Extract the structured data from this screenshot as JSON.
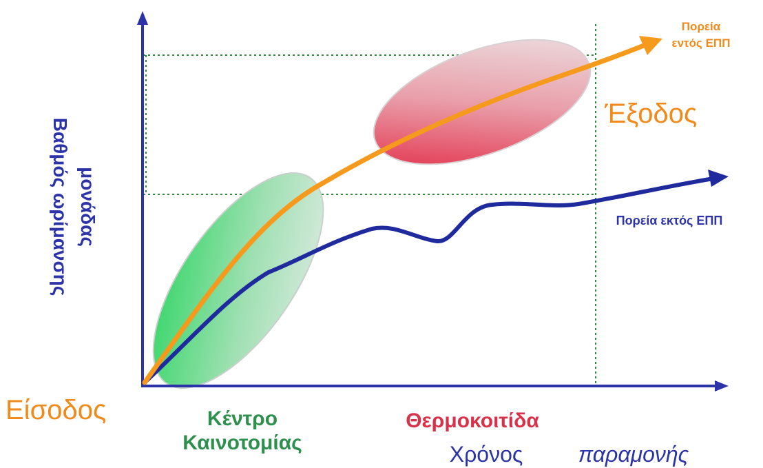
{
  "labels": {
    "y_axis_line1": "Βαθμός ωρίμανσης",
    "y_axis_line2": "μονάδας",
    "entry": "Είσοδος",
    "exit": "Έξοδος",
    "innovation_center_line1": "Κέντρο",
    "innovation_center_line2": "Καινοτομίας",
    "incubator": "Θερμοκοιτίδα",
    "time_line1": "Χρόνος",
    "time_line2": "παραμονής",
    "path_inside_line1": "Πορεία",
    "path_inside_line2": "εντός ΕΠΠ",
    "path_outside": "Πορεία εκτός ΕΠΠ"
  },
  "colors": {
    "axis": "#2b33a6",
    "orange_curve": "#f59a1c",
    "blue_curve": "#1f2a9c",
    "orange_text": "#f08a1a",
    "green_text": "#2e8f4e",
    "red_text": "#d8324a",
    "blue_text": "#2b33a6",
    "grid_dotted": "#2e8b3e",
    "green_ellipse": "#3fd66a",
    "red_ellipse": "#e0243f"
  }
}
